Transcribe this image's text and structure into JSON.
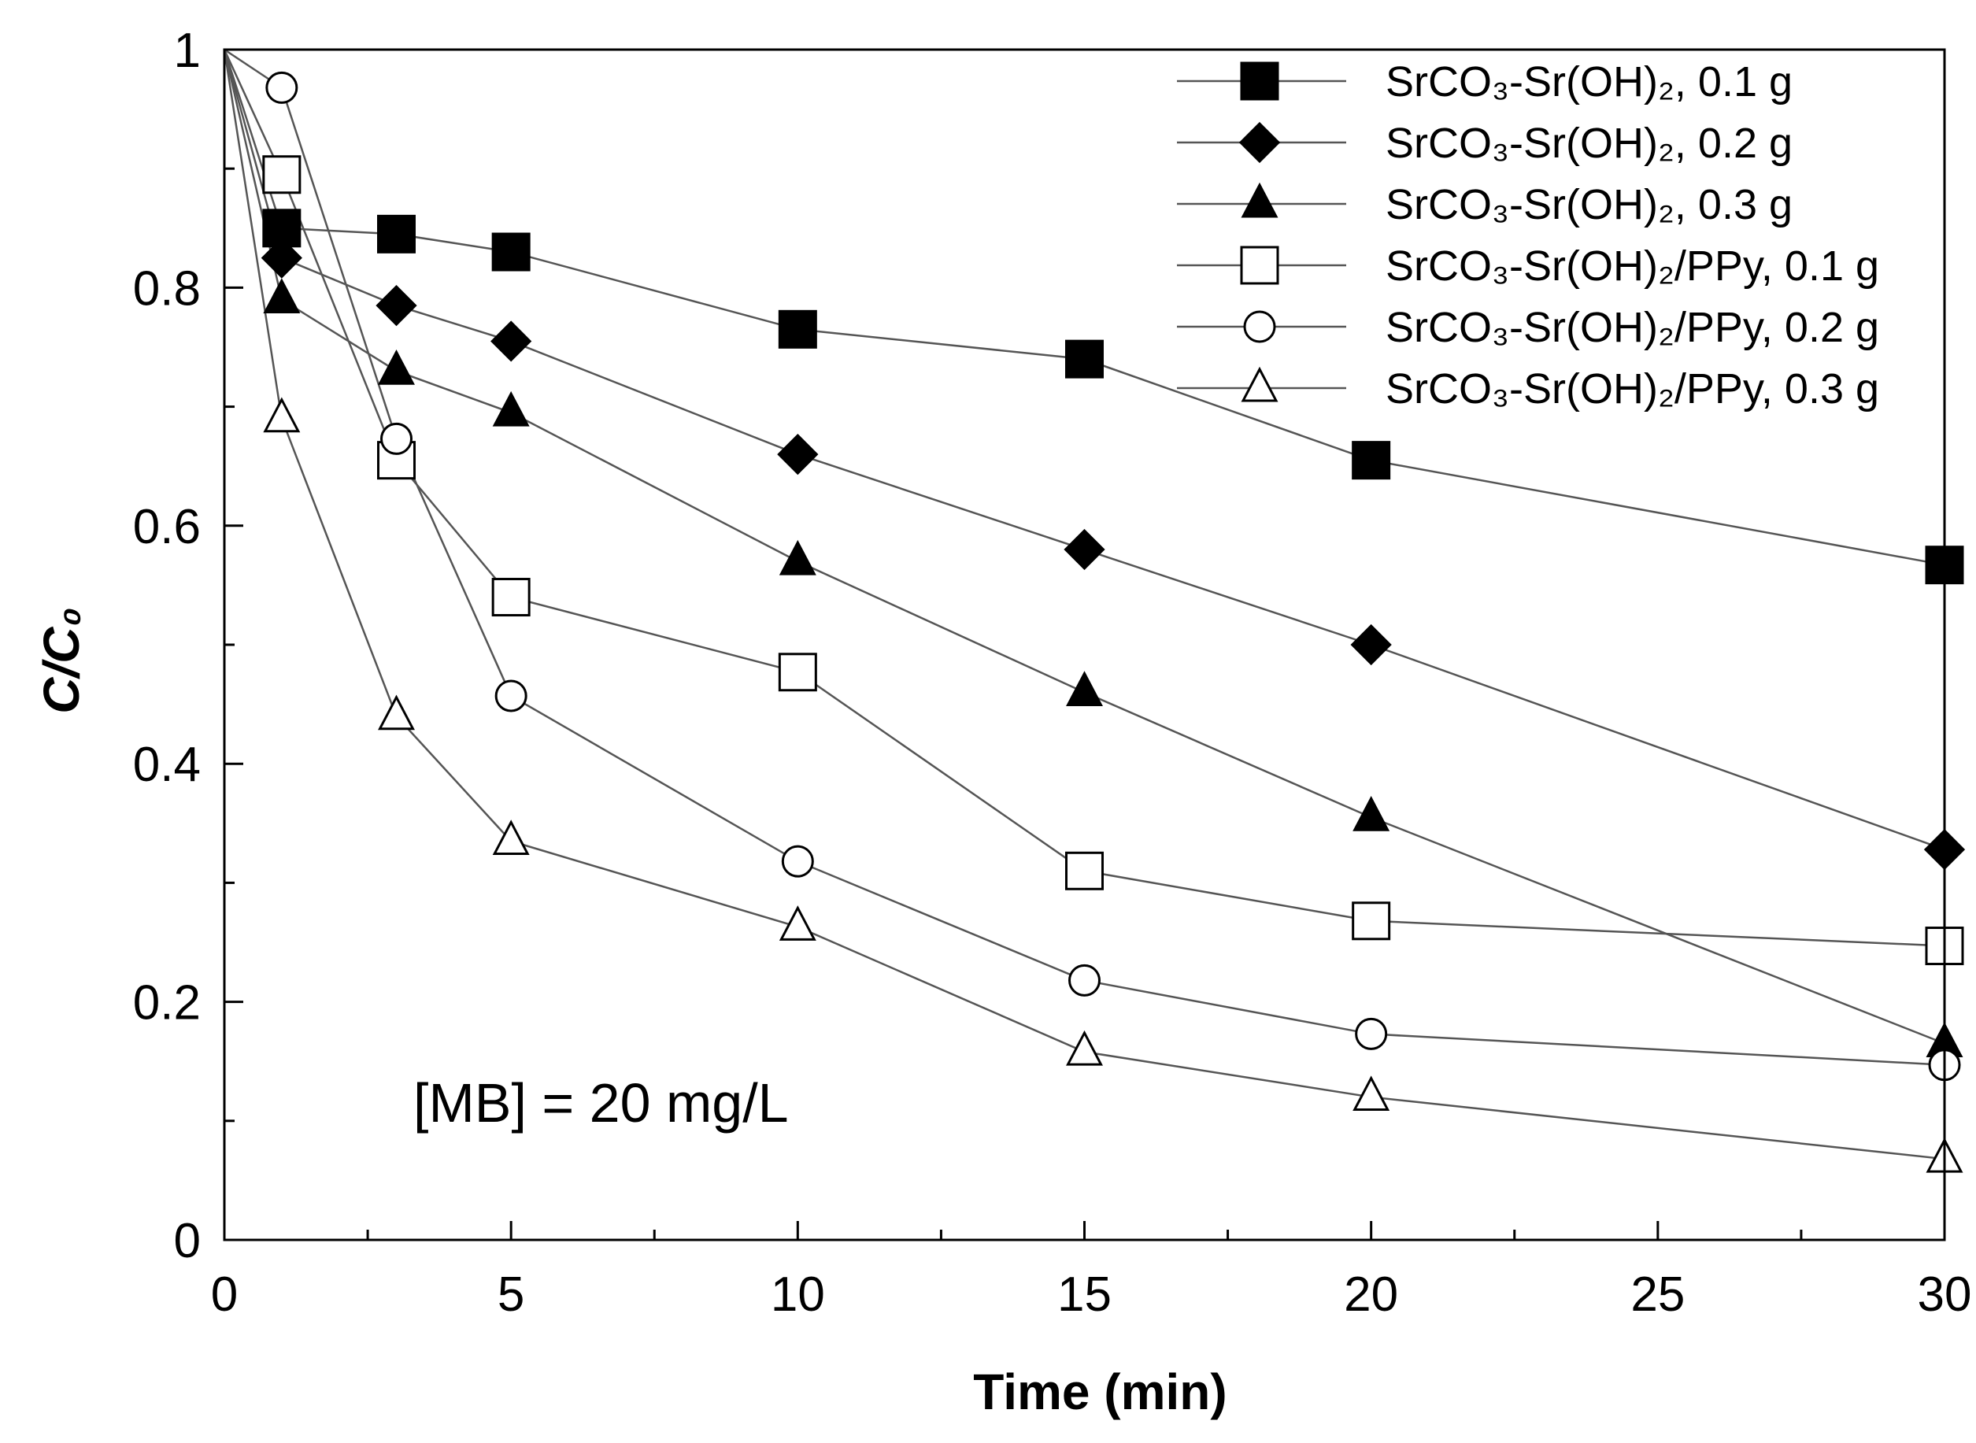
{
  "chart_data": {
    "type": "line",
    "xlabel": "Time (min)",
    "ylabel": "C/C₀",
    "xlim": [
      0,
      30
    ],
    "ylim": [
      0,
      1
    ],
    "xticks": [
      0,
      5,
      10,
      15,
      20,
      25,
      30
    ],
    "xtick_labels": [
      "0",
      "5",
      "10",
      "15",
      "20",
      "25",
      "30"
    ],
    "yticks": [
      0,
      0.2,
      0.4,
      0.6,
      0.8,
      1
    ],
    "ytick_labels": [
      "0",
      "0.2",
      "0.4",
      "0.6",
      "0.8",
      "1"
    ],
    "grid": false,
    "legend_position": "top-right",
    "annotation": "[MB] = 20 mg/L",
    "series": [
      {
        "name": "SrCO₃-Sr(OH)₂, 0.1 g",
        "marker": "square",
        "filled": true,
        "x": [
          0,
          1,
          3,
          5,
          10,
          15,
          20,
          30
        ],
        "y": [
          1,
          0.85,
          0.845,
          0.83,
          0.765,
          0.74,
          0.655,
          0.567
        ]
      },
      {
        "name": "SrCO₃-Sr(OH)₂, 0.2 g",
        "marker": "diamond",
        "filled": true,
        "x": [
          0,
          1,
          3,
          5,
          10,
          15,
          20,
          30
        ],
        "y": [
          1,
          0.825,
          0.785,
          0.755,
          0.66,
          0.58,
          0.5,
          0.328
        ]
      },
      {
        "name": "SrCO₃-Sr(OH)₂, 0.3 g",
        "marker": "triangle",
        "filled": true,
        "x": [
          0,
          1,
          3,
          5,
          10,
          15,
          20,
          30
        ],
        "y": [
          1,
          0.79,
          0.73,
          0.695,
          0.57,
          0.46,
          0.355,
          0.165
        ]
      },
      {
        "name": "SrCO₃-Sr(OH)₂/PPy, 0.1 g",
        "marker": "square",
        "filled": false,
        "x": [
          0,
          1,
          3,
          5,
          10,
          15,
          20,
          30
        ],
        "y": [
          1,
          0.895,
          0.655,
          0.54,
          0.477,
          0.31,
          0.268,
          0.247
        ]
      },
      {
        "name": "SrCO₃-Sr(OH)₂/PPy, 0.2 g",
        "marker": "circle",
        "filled": false,
        "x": [
          0,
          1,
          3,
          5,
          10,
          15,
          20,
          30
        ],
        "y": [
          1,
          0.968,
          0.673,
          0.457,
          0.318,
          0.218,
          0.173,
          0.147
        ]
      },
      {
        "name": "SrCO₃-Sr(OH)₂/PPy, 0.3 g",
        "marker": "triangle",
        "filled": false,
        "x": [
          0,
          1,
          3,
          5,
          10,
          15,
          20,
          30
        ],
        "y": [
          1,
          0.69,
          0.44,
          0.335,
          0.263,
          0.158,
          0.12,
          0.068
        ]
      }
    ]
  }
}
